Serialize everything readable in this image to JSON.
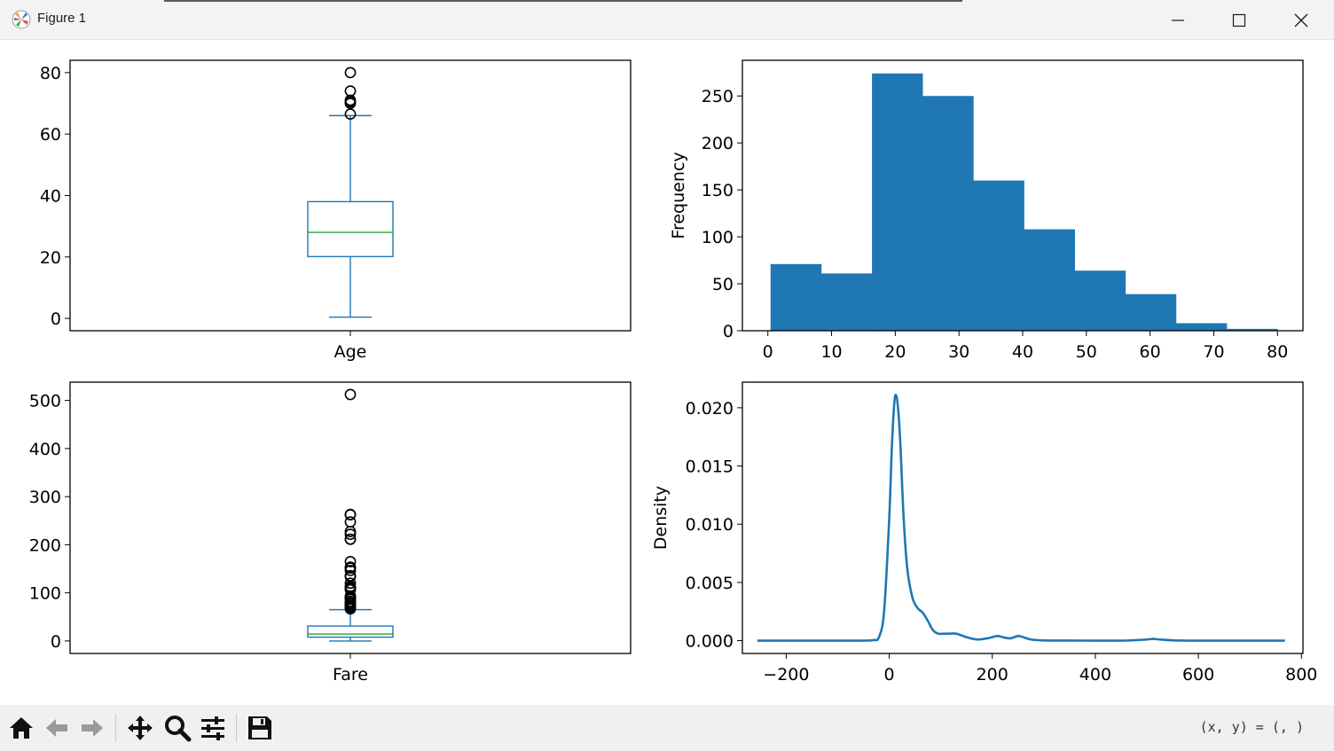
{
  "window": {
    "title": "Figure 1",
    "controls": [
      "minimize",
      "maximize",
      "close"
    ]
  },
  "toolbar": {
    "tools": [
      "home-icon",
      "back-icon",
      "forward-icon",
      "pan-icon",
      "zoom-icon",
      "configure-subplots-icon",
      "save-icon"
    ],
    "coords_text": "(x, y) = (, )"
  },
  "colors": {
    "series": "#1f77b4",
    "median": "#2ca02c",
    "outlier": "#000000"
  },
  "chart_data": [
    {
      "type": "box",
      "category": "Age",
      "ylim": [
        -4,
        84
      ],
      "yticks": [
        0,
        20,
        40,
        60,
        80
      ],
      "whisker_low": 0.42,
      "q1": 20.125,
      "median": 28,
      "q3": 38,
      "whisker_high": 66,
      "outliers": [
        66.5,
        70,
        70.5,
        71,
        74,
        80
      ]
    },
    {
      "type": "bar",
      "ylabel": "Frequency",
      "xlim": [
        -4,
        84
      ],
      "xticks": [
        0,
        10,
        20,
        30,
        40,
        50,
        60,
        70,
        80
      ],
      "ylim": [
        0,
        288
      ],
      "yticks": [
        0,
        50,
        100,
        150,
        200,
        250
      ],
      "bin_edges": [
        0.42,
        8.38,
        16.34,
        24.29,
        32.25,
        40.21,
        48.17,
        56.13,
        64.08,
        72.04,
        80.0
      ],
      "values": [
        71,
        61,
        274,
        250,
        160,
        108,
        64,
        39,
        8,
        2
      ]
    },
    {
      "type": "box",
      "category": "Fare",
      "ylim": [
        -26,
        538
      ],
      "yticks": [
        0,
        100,
        200,
        300,
        400,
        500
      ],
      "whisker_low": 0,
      "q1": 7.91,
      "median": 14.45,
      "q3": 31,
      "whisker_high": 65,
      "outliers": [
        66.6,
        69.55,
        71.28,
        73.5,
        76.73,
        77.96,
        79.2,
        82.17,
        86.5,
        89.1,
        90,
        91.08,
        93.5,
        106.43,
        108.9,
        110.88,
        113.28,
        120,
        133.65,
        134.5,
        135.63,
        146.52,
        151.55,
        153.46,
        164.87,
        211.34,
        211.5,
        221.78,
        227.53,
        247.52,
        262.38,
        263,
        512.33
      ]
    },
    {
      "type": "line",
      "ylabel": "Density",
      "xlim": [
        -285,
        803
      ],
      "xticks": [
        -200,
        0,
        200,
        400,
        600,
        800
      ],
      "ylim": [
        -0.0011,
        0.0222
      ],
      "yticks": [
        0.0,
        0.005,
        0.01,
        0.015,
        0.02
      ],
      "ytick_labels": [
        "0.000",
        "0.005",
        "0.010",
        "0.015",
        "0.020"
      ],
      "x": [
        -256,
        -100,
        -50,
        -30,
        -20,
        -10,
        0,
        5,
        10,
        14,
        18,
        22,
        28,
        35,
        45,
        55,
        65,
        75,
        85,
        95,
        105,
        115,
        130,
        150,
        170,
        190,
        210,
        220,
        235,
        250,
        260,
        275,
        300,
        350,
        400,
        450,
        480,
        500,
        512,
        525,
        550,
        600,
        700,
        768
      ],
      "y": [
        0,
        0,
        0,
        5e-05,
        0.0003,
        0.0025,
        0.0105,
        0.0165,
        0.0205,
        0.021,
        0.0195,
        0.0165,
        0.0105,
        0.0062,
        0.0037,
        0.0028,
        0.0024,
        0.0017,
        0.0009,
        0.0006,
        0.0006,
        0.0006,
        0.0006,
        0.0003,
        0.0001,
        0.0002,
        0.0004,
        0.0003,
        0.0002,
        0.0004,
        0.0003,
        0.0001,
        2e-05,
        1e-05,
        0,
        0,
        5e-05,
        0.0001,
        0.00015,
        0.0001,
        3e-05,
        0,
        0,
        0
      ]
    }
  ]
}
